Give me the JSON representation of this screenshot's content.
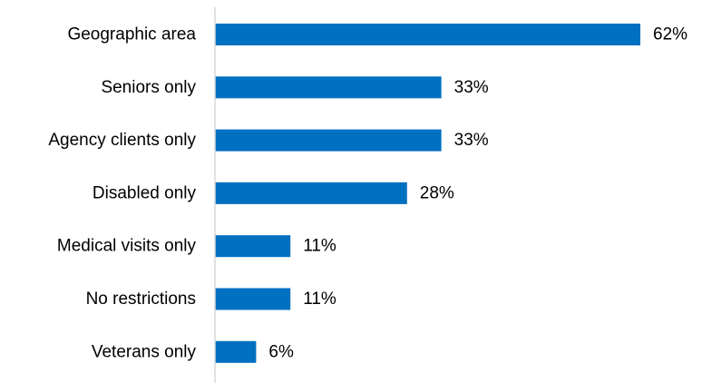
{
  "chart_data": {
    "type": "bar",
    "orientation": "horizontal",
    "title": "",
    "xlabel": "",
    "ylabel": "",
    "categories": [
      "Geographic area",
      "Seniors only",
      "Agency clients only",
      "Disabled only",
      "Medical visits only",
      "No restrictions",
      "Veterans only"
    ],
    "values": [
      62,
      33,
      33,
      28,
      11,
      11,
      6
    ],
    "value_labels": [
      "62%",
      "33%",
      "33%",
      "28%",
      "11%",
      "11%",
      "6%"
    ],
    "value_unit": "%",
    "xlim": [
      0,
      62
    ],
    "grid": false,
    "legend": "none",
    "bar_color": "#0070C0",
    "axis_color": "#D9D9D9"
  }
}
